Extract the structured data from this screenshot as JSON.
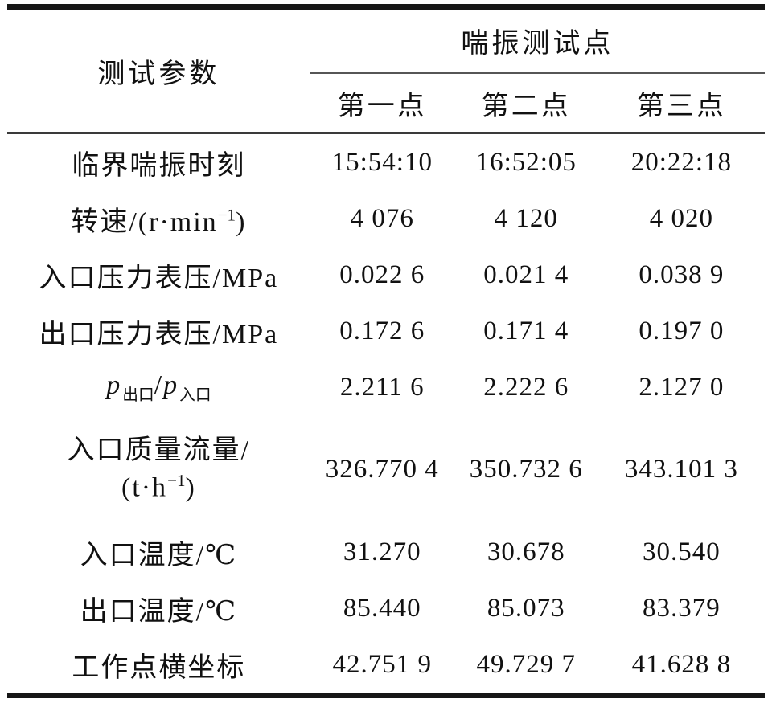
{
  "table": {
    "header": {
      "param_col": "测试参数",
      "group_col": "喘振测试点",
      "points": [
        "第一点",
        "第二点",
        "第三点"
      ]
    },
    "rows": [
      {
        "label": "临界喘振时刻",
        "values": [
          "15:54:10",
          "16:52:05",
          "20:22:18"
        ]
      },
      {
        "label_pre": "转速/(r·min",
        "label_sup": "−1",
        "label_post": ")",
        "values": [
          "4 076",
          "4 120",
          "4 020"
        ]
      },
      {
        "label": "入口压力表压/MPa",
        "values": [
          "0.022 6",
          "0.021 4",
          "0.038 9"
        ]
      },
      {
        "label": "出口压力表压/MPa",
        "values": [
          "0.172 6",
          "0.171 4",
          "0.197 0"
        ]
      },
      {
        "p1": "p",
        "sub1": "出口",
        "slash": "/",
        "p2": "p",
        "sub2": "入口",
        "values": [
          "2.211 6",
          "2.222 6",
          "2.127 0"
        ]
      },
      {
        "label_line1": "入口质量流量/",
        "l2_pre": "(t·h",
        "l2_sup": "−1",
        "l2_post": ")",
        "values": [
          "326.770 4",
          "350.732 6",
          "343.101 3"
        ]
      },
      {
        "label": "入口温度/℃",
        "values": [
          "31.270",
          "30.678",
          "30.540"
        ]
      },
      {
        "label": "出口温度/℃",
        "values": [
          "85.440",
          "85.073",
          "83.379"
        ]
      },
      {
        "label": "工作点横坐标",
        "values": [
          "42.751 9",
          "49.729 7",
          "41.628 8"
        ]
      }
    ]
  }
}
